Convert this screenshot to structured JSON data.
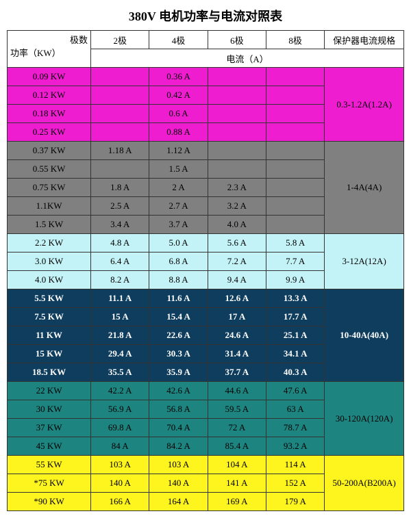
{
  "title": "380V 电机功率与电流对照表",
  "headers": {
    "power_label": "功率（KW）",
    "pole_label": "极数",
    "p2": "2极",
    "p4": "4极",
    "p6": "6极",
    "p8": "8极",
    "spec": "保护器电流规格",
    "current_label": "电流（A）"
  },
  "groups": [
    {
      "bg_row": "#ee1dd0",
      "bg_spec": "#ee1dd0",
      "fg": "#000000",
      "spec": "0.3-1.2A(1.2A)",
      "rows": [
        {
          "power": "0.09 KW",
          "c2": "",
          "c4": "0.36 A",
          "c6": "",
          "c8": ""
        },
        {
          "power": "0.12 KW",
          "c2": "",
          "c4": "0.42 A",
          "c6": "",
          "c8": ""
        },
        {
          "power": "0.18 KW",
          "c2": "",
          "c4": "0.6 A",
          "c6": "",
          "c8": ""
        },
        {
          "power": "0.25 KW",
          "c2": "",
          "c4": "0.88 A",
          "c6": "",
          "c8": ""
        }
      ]
    },
    {
      "bg_row": "#808080",
      "bg_spec": "#808080",
      "fg": "#000000",
      "spec": "1-4A(4A)",
      "rows": [
        {
          "power": "0.37 KW",
          "c2": "1.18 A",
          "c4": "1.12 A",
          "c6": "",
          "c8": ""
        },
        {
          "power": "0.55 KW",
          "c2": "",
          "c4": "1.5 A",
          "c6": "",
          "c8": ""
        },
        {
          "power": "0.75 KW",
          "c2": "1.8 A",
          "c4": "2 A",
          "c6": "2.3 A",
          "c8": ""
        },
        {
          "power": "1.1KW",
          "c2": "2.5 A",
          "c4": "2.7 A",
          "c6": "3.2 A",
          "c8": ""
        },
        {
          "power": "1.5 KW",
          "c2": "3.4 A",
          "c4": "3.7 A",
          "c6": "4.0 A",
          "c8": ""
        }
      ]
    },
    {
      "bg_row": "#c3f3f6",
      "bg_spec": "#c3f3f6",
      "fg": "#000000",
      "spec": "3-12A(12A)",
      "rows": [
        {
          "power": "2.2 KW",
          "c2": "4.8 A",
          "c4": "5.0 A",
          "c6": "5.6 A",
          "c8": "5.8 A"
        },
        {
          "power": "3.0 KW",
          "c2": "6.4 A",
          "c4": "6.8 A",
          "c6": "7.2 A",
          "c8": "7.7 A"
        },
        {
          "power": "4.0 KW",
          "c2": "8.2 A",
          "c4": "8.8 A",
          "c6": "9.4 A",
          "c8": "9.9 A"
        }
      ]
    },
    {
      "bg_row": "#0f3d5e",
      "bg_spec": "#0f3d5e",
      "fg": "#ffffff",
      "spec": "10-40A(40A)",
      "rows": [
        {
          "power": "5.5 KW",
          "c2": "11.1 A",
          "c4": "11.6 A",
          "c6": "12.6 A",
          "c8": "13.3 A"
        },
        {
          "power": "7.5 KW",
          "c2": "15 A",
          "c4": "15.4 A",
          "c6": "17 A",
          "c8": "17.7 A"
        },
        {
          "power": "11 KW",
          "c2": "21.8 A",
          "c4": "22.6 A",
          "c6": "24.6 A",
          "c8": "25.1 A"
        },
        {
          "power": "15 KW",
          "c2": "29.4 A",
          "c4": "30.3 A",
          "c6": "31.4 A",
          "c8": "34.1 A"
        },
        {
          "power": "18.5 KW",
          "c2": "35.5 A",
          "c4": "35.9 A",
          "c6": "37.7 A",
          "c8": "40.3 A"
        }
      ]
    },
    {
      "bg_row": "#1e8480",
      "bg_spec": "#1e8480",
      "fg": "#000000",
      "spec": "30-120A(120A)",
      "rows": [
        {
          "power": "22 KW",
          "c2": "42.2 A",
          "c4": "42.6 A",
          "c6": "44.6 A",
          "c8": "47.6 A"
        },
        {
          "power": "30 KW",
          "c2": "56.9 A",
          "c4": "56.8 A",
          "c6": "59.5 A",
          "c8": "63 A"
        },
        {
          "power": "37 KW",
          "c2": "69.8 A",
          "c4": "70.4 A",
          "c6": "72 A",
          "c8": "78.7 A"
        },
        {
          "power": "45 KW",
          "c2": "84 A",
          "c4": "84.2 A",
          "c6": "85.4 A",
          "c8": "93.2 A"
        }
      ]
    },
    {
      "bg_row": "#fef41e",
      "bg_spec": "#fef41e",
      "fg": "#000000",
      "spec": "50-200A(B200A)",
      "rows": [
        {
          "power": "55 KW",
          "c2": "103 A",
          "c4": "103 A",
          "c6": "104 A",
          "c8": "114 A"
        },
        {
          "power": "*75 KW",
          "c2": "140 A",
          "c4": "140 A",
          "c6": "141 A",
          "c8": "152 A"
        },
        {
          "power": "*90 KW",
          "c2": "166 A",
          "c4": "164 A",
          "c6": "169 A",
          "c8": "179 A"
        }
      ]
    }
  ]
}
